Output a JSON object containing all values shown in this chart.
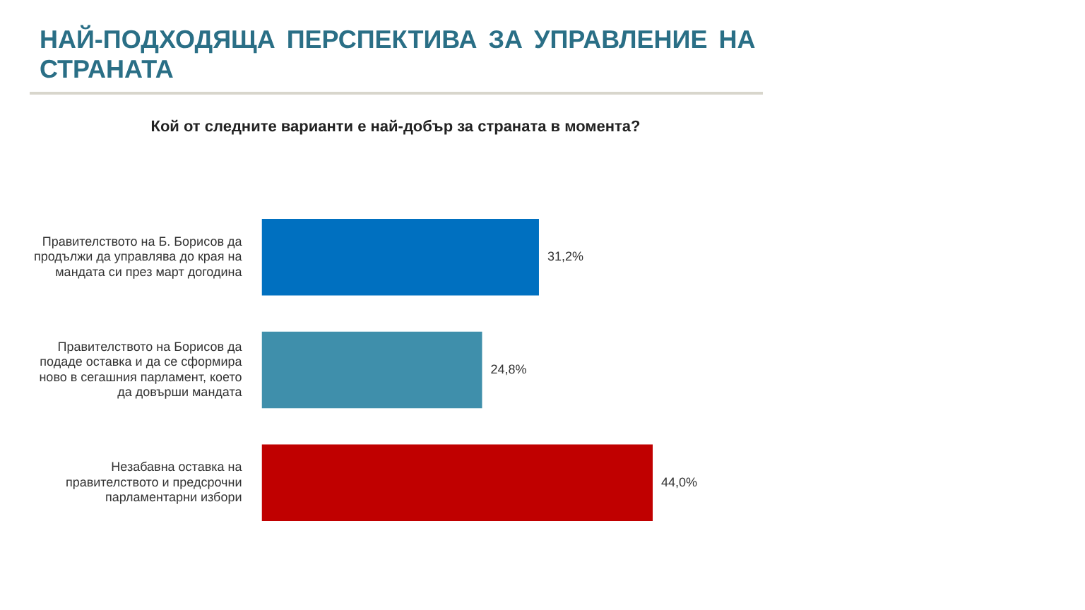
{
  "chart_data": {
    "type": "bar",
    "orientation": "horizontal",
    "title": "НАЙ-ПОДХОДЯЩА ПЕРСПЕКТИВА ЗА УПРАВЛЕНИЕ НА СТРАНАТА",
    "subtitle": "Кой от следните варианти е най-добър за страната в момента?",
    "categories": [
      "Правителството на Б. Борисов да продължи да управлява до края на мандата си през март догодина",
      "Правителството на Борисов да подаде оставка и да се сформира ново в сегашния парламент, което да довърши мандата",
      "Незабавна оставка на правителството и предсрочни парламентарни избори"
    ],
    "values": [
      31.2,
      24.8,
      44.0
    ],
    "colors": [
      "#0070c0",
      "#3f8fab",
      "#c00000"
    ],
    "value_labels": [
      "31,2%",
      "24,8%",
      "44,0%"
    ],
    "xlim": [
      0,
      44
    ],
    "tick_labels": "y",
    "grid": false,
    "legend": false
  }
}
